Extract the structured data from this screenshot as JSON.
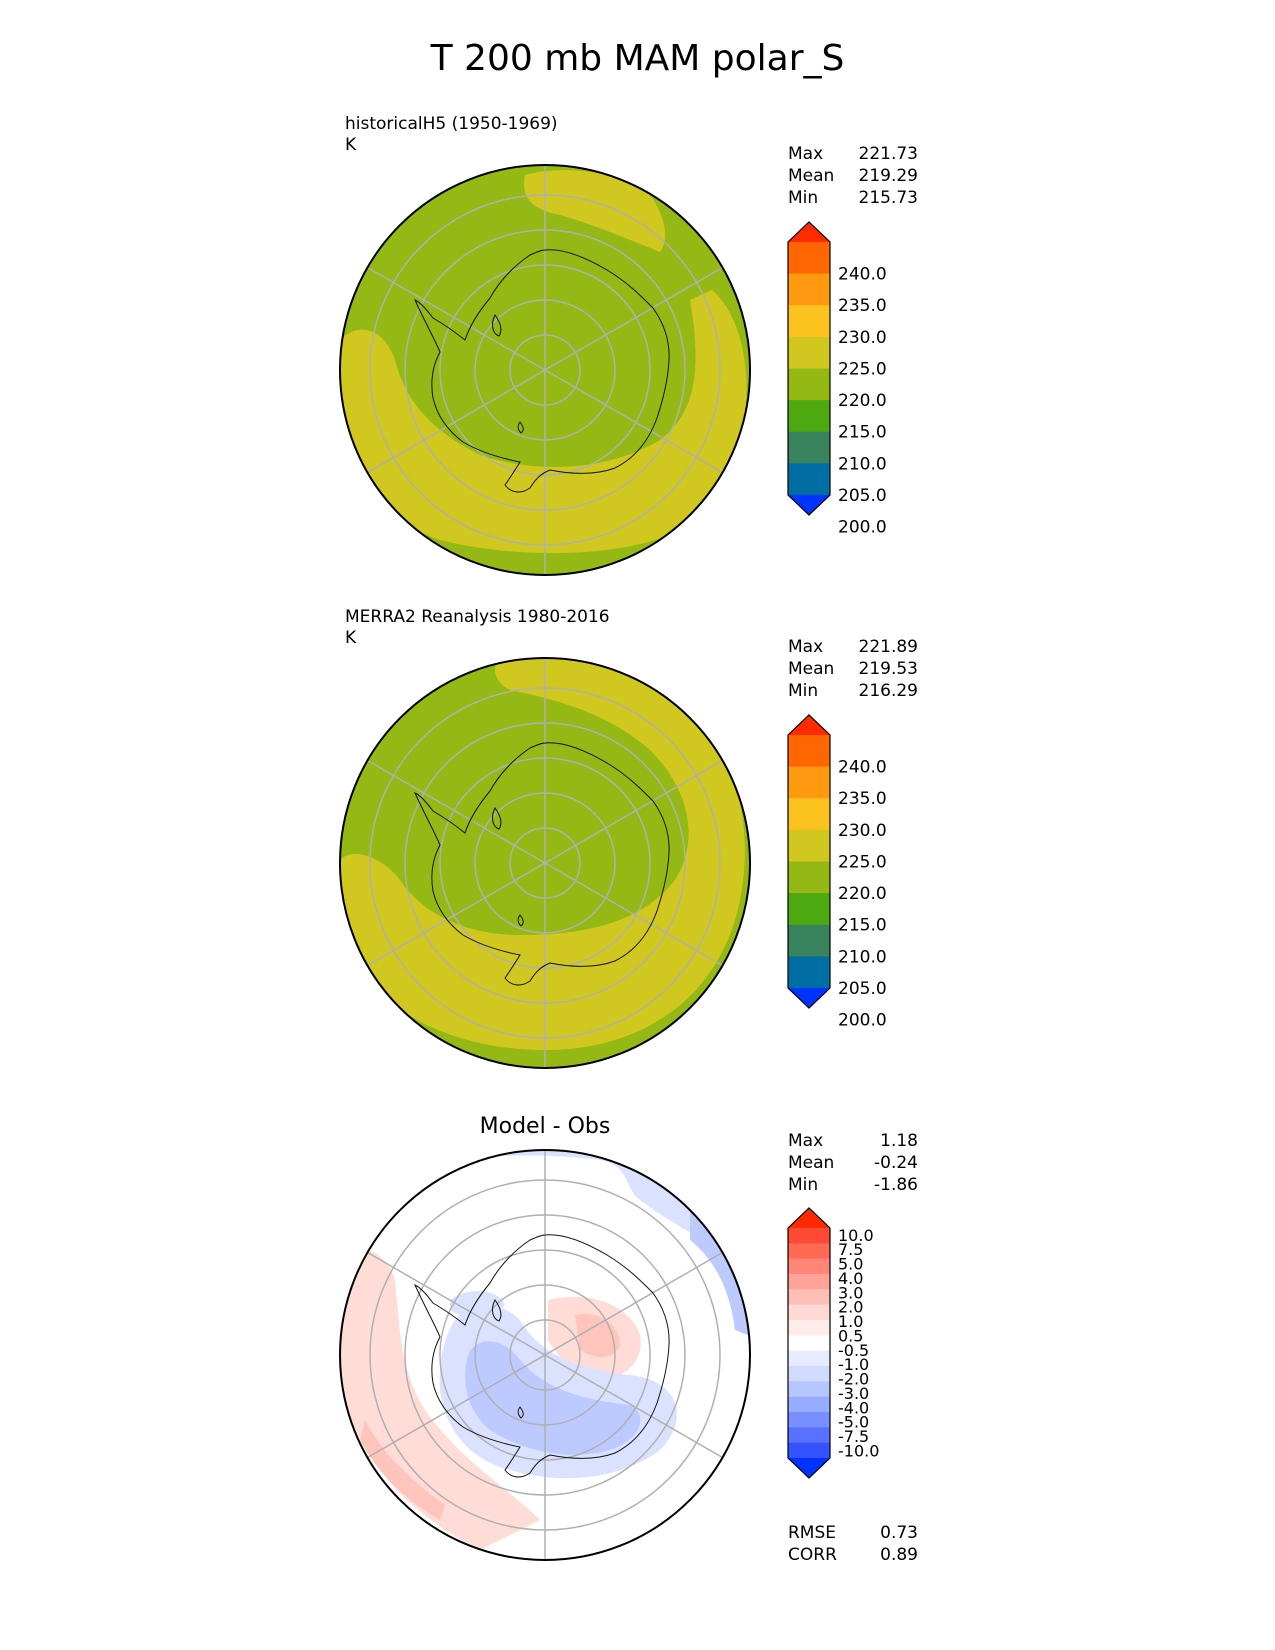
{
  "title": "T 200 mb MAM polar_S",
  "panels": [
    {
      "id": "test",
      "label": "historicalH5 (1950-1969)",
      "units": "K",
      "stats": [
        {
          "name": "Max",
          "value": "221.73"
        },
        {
          "name": "Mean",
          "value": "219.29"
        },
        {
          "name": "Min",
          "value": "215.73"
        }
      ],
      "colorbar": {
        "ticks": [
          "240.0",
          "235.0",
          "230.0",
          "225.0",
          "220.0",
          "215.0",
          "210.0",
          "205.0",
          "200.0"
        ],
        "colors": [
          "#ff2a00",
          "#ff6600",
          "#ff9a10",
          "#fcc21e",
          "#d0c81e",
          "#94b914",
          "#4ea80f",
          "#39845c",
          "#006ea2",
          "#0033ff"
        ]
      }
    },
    {
      "id": "reference",
      "label": "MERRA2 Reanalysis 1980-2016",
      "units": "K",
      "stats": [
        {
          "name": "Max",
          "value": "221.89"
        },
        {
          "name": "Mean",
          "value": "219.53"
        },
        {
          "name": "Min",
          "value": "216.29"
        }
      ],
      "colorbar": {
        "ticks": [
          "240.0",
          "235.0",
          "230.0",
          "225.0",
          "220.0",
          "215.0",
          "210.0",
          "205.0",
          "200.0"
        ],
        "colors": [
          "#ff2a00",
          "#ff6600",
          "#ff9a10",
          "#fcc21e",
          "#d0c81e",
          "#94b914",
          "#4ea80f",
          "#39845c",
          "#006ea2",
          "#0033ff"
        ]
      }
    },
    {
      "id": "difference",
      "label": "Model - Obs",
      "stats": [
        {
          "name": "Max",
          "value": "1.18"
        },
        {
          "name": "Mean",
          "value": "-0.24"
        },
        {
          "name": "Min",
          "value": "-1.86"
        }
      ],
      "metrics": [
        {
          "name": "RMSE",
          "value": "0.73"
        },
        {
          "name": "CORR",
          "value": "0.89"
        }
      ],
      "colorbar": {
        "ticks": [
          "10.0",
          "7.5",
          "5.0",
          "4.0",
          "3.0",
          "2.0",
          "1.0",
          "0.5",
          "-0.5",
          "-1.0",
          "-2.0",
          "-3.0",
          "-4.0",
          "-5.0",
          "-7.5",
          "-10.0"
        ],
        "colors": [
          "#ff2a00",
          "#ff4a33",
          "#ff6a55",
          "#ff8677",
          "#ffa399",
          "#ffbfb6",
          "#ffd9d3",
          "#ffecea",
          "#ffffff",
          "#e6ebff",
          "#d1dbff",
          "#b7c6ff",
          "#98acff",
          "#7890ff",
          "#5872ff",
          "#3452ff",
          "#0033ff"
        ]
      }
    }
  ],
  "colors": {
    "green_band": "#94b914",
    "yellow_band": "#d0c81e",
    "diff_light_blue": "#dbe2ff",
    "diff_mid_blue": "#bdcaff",
    "diff_light_red": "#ffdcd6",
    "diff_mid_red": "#ffc5bc"
  }
}
